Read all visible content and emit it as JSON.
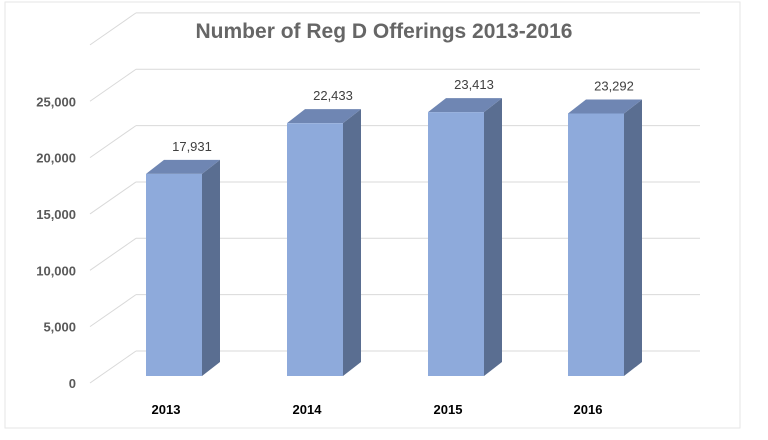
{
  "chart_data": {
    "type": "bar",
    "title": "Number of Reg D Offerings 2013-2016",
    "categories": [
      "2013",
      "2014",
      "2015",
      "2016"
    ],
    "values": [
      17931,
      22433,
      23413,
      23292
    ],
    "data_labels": [
      "17,931",
      "22,433",
      "23,413",
      "23,292"
    ],
    "yticks": [
      "0",
      "5,000",
      "10,000",
      "15,000",
      "20,000",
      "25,000"
    ],
    "ytick_values": [
      0,
      5000,
      10000,
      15000,
      20000,
      25000
    ],
    "ylim": [
      0,
      25000
    ],
    "xlabel": "",
    "ylabel": "",
    "grid": true,
    "style": "3d-column",
    "colors": {
      "front": "#8eaadb",
      "side": "#5a6e91",
      "top": "#6f86b3",
      "grid": "#d9d9d9"
    }
  }
}
